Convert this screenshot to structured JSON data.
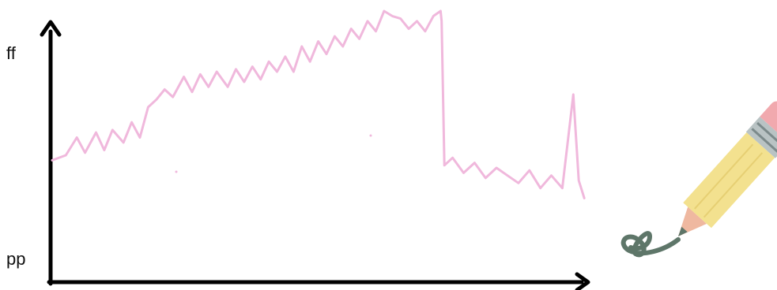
{
  "chart_data": {
    "type": "line",
    "title": "",
    "xlabel": "",
    "ylabel": "",
    "y_tick_labels": {
      "top": "ff",
      "bottom": "pp"
    },
    "ylim": [
      0,
      10
    ],
    "xlim": [
      0,
      10
    ],
    "grid": false,
    "legend": "none",
    "series": [
      {
        "color": "#f0b8dc",
        "x": [
          0.0,
          0.25,
          0.45,
          0.6,
          0.8,
          0.95,
          1.1,
          1.3,
          1.45,
          1.6,
          1.75,
          1.9,
          2.05,
          2.2,
          2.4,
          2.55,
          2.7,
          2.85,
          3.0,
          3.2,
          3.35,
          3.5,
          3.65,
          3.8,
          3.95,
          4.1,
          4.25,
          4.4,
          4.55,
          4.7,
          4.85,
          5.0,
          5.15,
          5.3,
          5.45,
          5.6,
          5.75,
          5.9,
          6.05,
          6.2,
          6.35,
          6.5,
          6.65,
          6.8,
          6.95,
          7.08,
          7.1,
          7.15,
          7.3,
          7.5,
          7.7,
          7.9,
          8.1,
          8.3,
          8.5,
          8.7,
          8.9,
          9.1,
          9.3,
          9.5,
          9.6,
          9.7
        ],
        "values": [
          4.1,
          4.3,
          5.0,
          4.4,
          5.2,
          4.5,
          5.3,
          4.8,
          5.6,
          5.0,
          6.2,
          6.5,
          6.9,
          6.6,
          7.4,
          6.8,
          7.5,
          7.0,
          7.6,
          7.0,
          7.7,
          7.2,
          7.8,
          7.3,
          8.0,
          7.6,
          8.2,
          7.6,
          8.6,
          8.0,
          8.8,
          8.3,
          9.0,
          8.6,
          9.3,
          8.9,
          9.6,
          9.2,
          10.0,
          9.8,
          9.7,
          9.3,
          9.6,
          9.2,
          9.8,
          10.0,
          9.6,
          3.9,
          4.2,
          3.6,
          4.0,
          3.4,
          3.8,
          3.5,
          3.2,
          3.7,
          3.0,
          3.5,
          3.0,
          6.7,
          3.3,
          2.6
        ]
      }
    ]
  },
  "decoration": {
    "pencil_icon": "pencil-icon",
    "pencil_body": "#f3e18f",
    "pencil_tip": "#efb8a0",
    "pencil_eraser": "#f1a9ae",
    "pencil_band": "#b9c3c4",
    "squiggle": "#5e7669"
  }
}
